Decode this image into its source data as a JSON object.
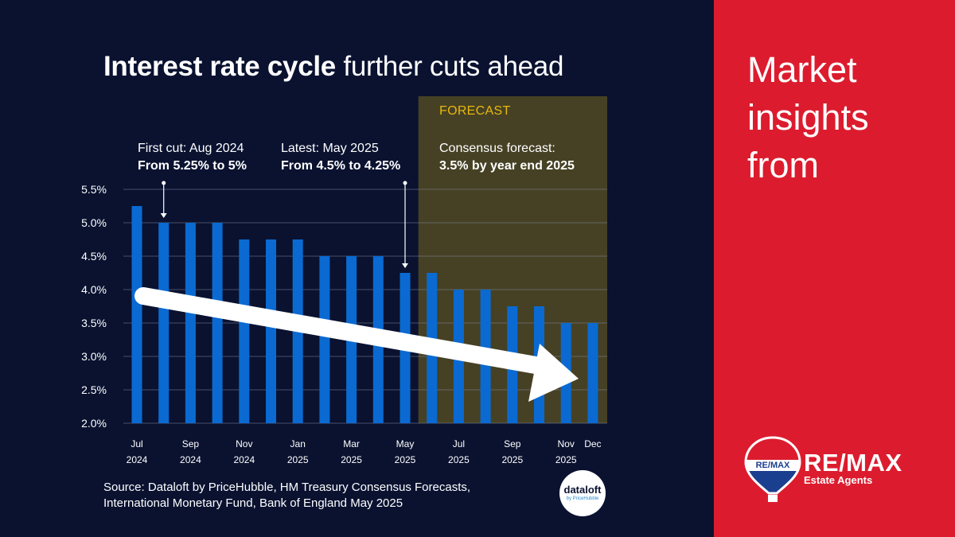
{
  "title": {
    "bold": "Interest rate cycle",
    "light": "further cuts ahead"
  },
  "annotations": [
    {
      "line1": "First cut: Aug 2024",
      "line2": "From 5.25% to 5%"
    },
    {
      "line1": "Latest: May 2025",
      "line2": "From 4.5% to 4.25%"
    },
    {
      "line1": "Consensus forecast:",
      "line2": "3.5% by year end 2025"
    }
  ],
  "forecast_label": "FORECAST",
  "source": {
    "line1": "Source: Dataloft by PriceHubble, HM Treasury Consensus Forecasts,",
    "line2": "International Monetary Fund, Bank of England May 2025"
  },
  "side": {
    "line1": "Market",
    "line2": "insights",
    "line3": "from"
  },
  "dataloft_logo": {
    "name": "dataloft",
    "sub": "by PriceHubble"
  },
  "remax": {
    "name": "RE/MAX",
    "sub": "Estate Agents",
    "balloon_text": "RE/MAX"
  },
  "colors": {
    "bar": "#0a6ad2",
    "background": "#0a1230",
    "forecast_band": "#4a4424",
    "side": "#dc1c2e",
    "forecast_text": "#e8b810"
  },
  "chart_data": {
    "type": "bar",
    "title": "Interest rate cycle further cuts ahead",
    "ylim": [
      2.0,
      5.5
    ],
    "yticks": [
      "5.5%",
      "5.0%",
      "4.5%",
      "4.0%",
      "3.5%",
      "3.0%",
      "2.5%",
      "2.0%"
    ],
    "ytick_values": [
      5.5,
      5.0,
      4.5,
      4.0,
      3.5,
      3.0,
      2.5,
      2.0
    ],
    "values": [
      5.25,
      5.0,
      5.0,
      5.0,
      4.75,
      4.75,
      4.75,
      4.5,
      4.5,
      4.5,
      4.25,
      4.25,
      4.0,
      4.0,
      3.75,
      3.75,
      3.5,
      3.5
    ],
    "forecast_start_index": 11,
    "xtick_labels": [
      {
        "index": 0,
        "line1": "Jul",
        "line2": "2024"
      },
      {
        "index": 2,
        "line1": "Sep",
        "line2": "2024"
      },
      {
        "index": 4,
        "line1": "Nov",
        "line2": "2024"
      },
      {
        "index": 6,
        "line1": "Jan",
        "line2": "2025"
      },
      {
        "index": 8,
        "line1": "Mar",
        "line2": "2025"
      },
      {
        "index": 10,
        "line1": "May",
        "line2": "2025"
      },
      {
        "index": 12,
        "line1": "Jul",
        "line2": "2025"
      },
      {
        "index": 14,
        "line1": "Sep",
        "line2": "2025"
      },
      {
        "index": 16,
        "line1": "Nov",
        "line2": "2025"
      },
      {
        "index": 17,
        "line1": "Dec",
        "line2": ""
      }
    ],
    "pointers": [
      {
        "index": 1
      },
      {
        "index": 10
      }
    ]
  }
}
